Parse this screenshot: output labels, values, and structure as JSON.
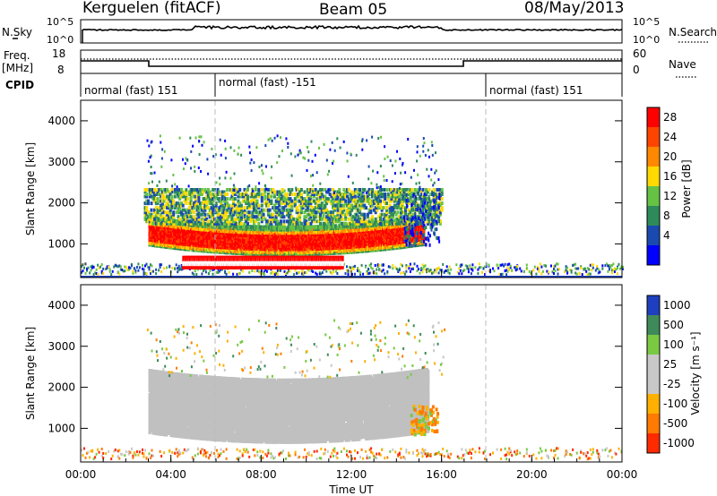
{
  "header": {
    "station": "Kerguelen (fitACF)",
    "beam": "Beam 05",
    "date": "08/May/2013"
  },
  "strip_labels": {
    "nsky": "N.Sky",
    "nsky_top": "10^5",
    "nsky_bottom": "10^0",
    "nsearch": "N.Search",
    "nsearch_top": "10^5",
    "nsearch_bottom": "10^0",
    "freq": "Freq.",
    "freq_unit": "[MHz]",
    "freq_top": "18",
    "freq_bottom": "8",
    "nave": "Nave",
    "nave_top": "60",
    "nave_bottom": "0",
    "cpid": "CPID"
  },
  "cpid_segments": [
    {
      "label": "normal (fast) 151",
      "start_hour": 0
    },
    {
      "label": "normal (fast) -151",
      "start_hour": 6
    },
    {
      "label": "normal (fast) 151",
      "start_hour": 18
    }
  ],
  "colors": {
    "power": [
      "#0000ff",
      "#1a4ab0",
      "#2e8a5a",
      "#66c244",
      "#ffd900",
      "#ff8800",
      "#ff4400",
      "#ff0000"
    ],
    "velocity": [
      "#1e3fbf",
      "#3f8a5a",
      "#7ac943",
      "#c8c8c8",
      "#c8c8c8",
      "#ffb000",
      "#ff7a00",
      "#ff2a00"
    ],
    "ground_scatter": "#c0c0c0"
  },
  "chart_data": [
    {
      "type": "heatmap",
      "panel": "power",
      "xlabel": "Time UT",
      "ylabel": "Slant Range [km]",
      "xlim": [
        0,
        24
      ],
      "ylim": [
        180,
        4500
      ],
      "xticks": [
        "00:00",
        "04:00",
        "08:00",
        "12:00",
        "16:00",
        "20:00",
        "00:00"
      ],
      "yticks": [
        1000,
        2000,
        3000,
        4000
      ],
      "colorbar": {
        "label": "Power [dB]",
        "ticks": [
          4,
          8,
          12,
          16,
          20,
          24,
          28
        ],
        "range": [
          0,
          32
        ]
      },
      "regions": [
        {
          "name": "main echo band",
          "t": [
            3.0,
            15.2
          ],
          "range_km": [
            800,
            1500
          ],
          "power_db": 28
        },
        {
          "name": "half-hop band",
          "t": [
            4.5,
            11.5
          ],
          "range_km": [
            380,
            600
          ],
          "power_db": 30
        },
        {
          "name": "upper diffuse band",
          "t": [
            2.8,
            16.0
          ],
          "range_km": [
            1500,
            2200
          ],
          "power_db": 14
        },
        {
          "name": "scattered high-range echoes",
          "t": [
            2.9,
            15.5
          ],
          "range_km": [
            2200,
            3600
          ],
          "power_db": 8
        },
        {
          "name": "near-range noise",
          "t": [
            0,
            24
          ],
          "range_km": [
            200,
            450
          ],
          "power_db": 6
        }
      ]
    },
    {
      "type": "heatmap",
      "panel": "velocity",
      "xlabel": "Time UT",
      "ylabel": "Slant Range [km]",
      "xlim": [
        0,
        24
      ],
      "ylim": [
        180,
        4500
      ],
      "xticks": [
        "00:00",
        "04:00",
        "08:00",
        "12:00",
        "16:00",
        "20:00",
        "00:00"
      ],
      "yticks": [
        1000,
        2000,
        3000,
        4000
      ],
      "colorbar": {
        "label": "Velocity [m s⁻¹]",
        "ticks": [
          "1000",
          "500",
          "100",
          "25",
          "-25",
          "-100",
          "-500",
          "-1000"
        ]
      },
      "regions": [
        {
          "name": "ground scatter main band",
          "t": [
            3.0,
            15.2
          ],
          "range_km": [
            700,
            1600
          ],
          "velocity": 0
        },
        {
          "name": "ground scatter upper band",
          "t": [
            3.5,
            15.5
          ],
          "range_km": [
            1600,
            2300
          ],
          "velocity": 0
        },
        {
          "name": "ionospheric echoes",
          "t": [
            2.9,
            16.0
          ],
          "range_km": [
            2300,
            3600
          ],
          "velocity": 100
        },
        {
          "name": "near-range noise",
          "t": [
            0,
            24
          ],
          "range_km": [
            200,
            450
          ],
          "velocity": -100
        }
      ]
    }
  ]
}
